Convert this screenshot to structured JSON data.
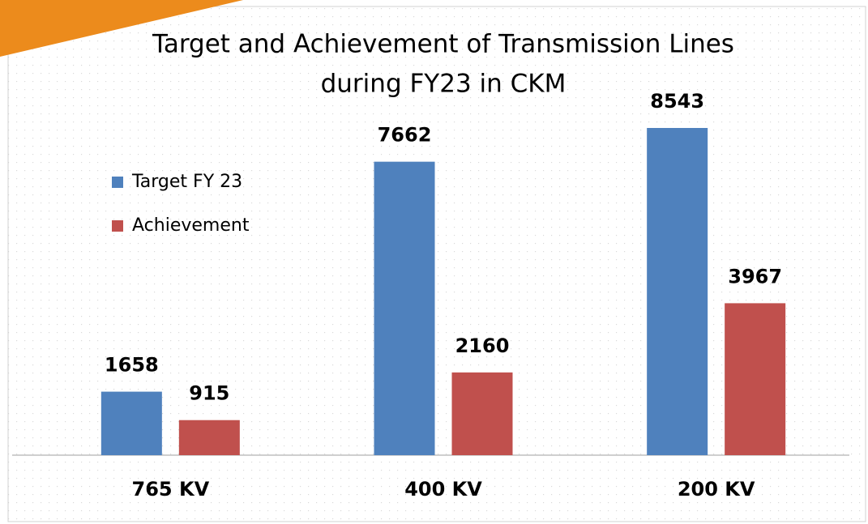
{
  "chart_data": {
    "type": "bar",
    "title": [
      "Target and Achievement of Transmission Lines",
      "during FY23 in CKM"
    ],
    "categories": [
      "765 KV",
      "400 KV",
      "200 KV"
    ],
    "series": [
      {
        "name": "Target FY 23",
        "color": "#4f81bd",
        "values": [
          1658,
          7662,
          8543
        ]
      },
      {
        "name": "Achievement",
        "color": "#c0504d",
        "values": [
          915,
          2160,
          3967
        ]
      }
    ]
  }
}
